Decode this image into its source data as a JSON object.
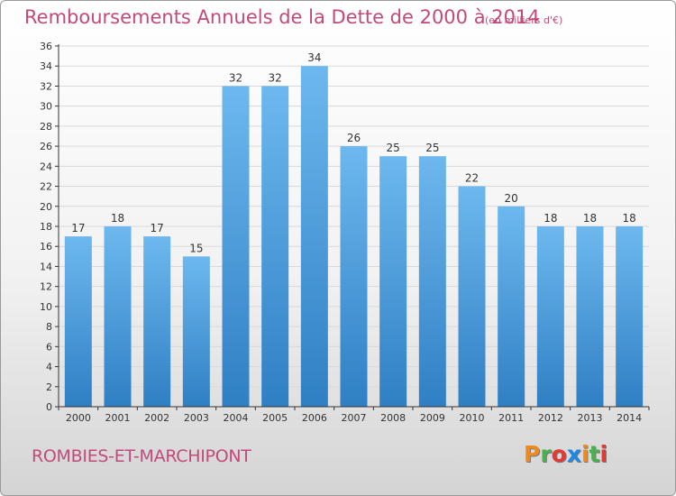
{
  "header": {
    "title": "Remboursements Annuels de la Dette de 2000 à 2014",
    "unit": "(en milliers d'€)"
  },
  "footer": {
    "commune": "ROMBIES-ET-MARCHIPONT",
    "logo_text": "Proxiti",
    "logo_colors": [
      "#f08a1c",
      "#4caf50",
      "#e53935",
      "#1e88e5",
      "#f08a1c",
      "#4caf50",
      "#e53935"
    ]
  },
  "colors": {
    "bar_top": "#6db8ee",
    "bar_bottom": "#2f7fc4",
    "axis": "#333333",
    "grid": "#d9d9d9"
  },
  "chart_data": {
    "type": "bar",
    "title": "Remboursements Annuels de la Dette de 2000 à 2014",
    "xlabel": "",
    "ylabel": "",
    "categories": [
      "2000",
      "2001",
      "2002",
      "2003",
      "2004",
      "2005",
      "2006",
      "2007",
      "2008",
      "2009",
      "2010",
      "2011",
      "2012",
      "2013",
      "2014"
    ],
    "values": [
      17,
      18,
      17,
      15,
      32,
      32,
      34,
      26,
      25,
      25,
      22,
      20,
      18,
      18,
      18
    ],
    "ylim": [
      0,
      36
    ],
    "yticks": [
      0,
      2,
      4,
      6,
      8,
      10,
      12,
      14,
      16,
      18,
      20,
      22,
      24,
      26,
      28,
      30,
      32,
      34,
      36
    ],
    "grid": true,
    "data_labels": true
  }
}
